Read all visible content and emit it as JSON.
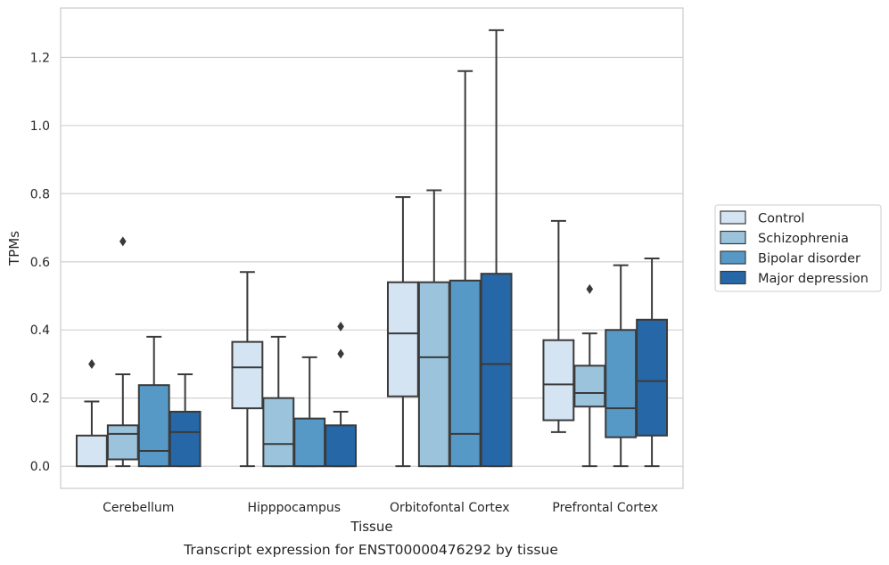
{
  "chart_data": {
    "type": "box",
    "title": "",
    "caption": "Transcript expression for ENST00000476292 by tissue",
    "xlabel": "Tissue",
    "ylabel": "TPMs",
    "ylim": [
      -0.065,
      1.345
    ],
    "yticks": [
      0.0,
      0.2,
      0.4,
      0.6,
      0.8,
      1.0,
      1.2
    ],
    "ytick_labels": [
      "0.0",
      "0.2",
      "0.4",
      "0.6",
      "0.8",
      "1.0",
      "1.2"
    ],
    "grid": "horizontal",
    "legend_position": "right",
    "categories": [
      "Cerebellum",
      "Hipppocampus",
      "Orbitofontal Cortex",
      "Prefrontal Cortex"
    ],
    "series": [
      {
        "name": "Control",
        "color": "#d4e4f3",
        "boxes": [
          {
            "whislo": 0.0,
            "q1": 0.0,
            "med": 0.0,
            "q3": 0.09,
            "whishi": 0.19,
            "fliers": [
              0.3
            ]
          },
          {
            "whislo": 0.0,
            "q1": 0.17,
            "med": 0.29,
            "q3": 0.365,
            "whishi": 0.57,
            "fliers": []
          },
          {
            "whislo": 0.0,
            "q1": 0.205,
            "med": 0.39,
            "q3": 0.54,
            "whishi": 0.79,
            "fliers": []
          },
          {
            "whislo": 0.1,
            "q1": 0.135,
            "med": 0.24,
            "q3": 0.37,
            "whishi": 0.72,
            "fliers": []
          }
        ]
      },
      {
        "name": "Schizophrenia",
        "color": "#9bc4dc",
        "boxes": [
          {
            "whislo": 0.0,
            "q1": 0.02,
            "med": 0.095,
            "q3": 0.12,
            "whishi": 0.27,
            "fliers": [
              0.66
            ]
          },
          {
            "whislo": 0.0,
            "q1": 0.0,
            "med": 0.065,
            "q3": 0.2,
            "whishi": 0.38,
            "fliers": []
          },
          {
            "whislo": 0.0,
            "q1": 0.0,
            "med": 0.32,
            "q3": 0.54,
            "whishi": 0.81,
            "fliers": []
          },
          {
            "whislo": 0.0,
            "q1": 0.175,
            "med": 0.215,
            "q3": 0.295,
            "whishi": 0.39,
            "fliers": [
              0.52
            ]
          }
        ]
      },
      {
        "name": "Bipolar disorder",
        "color": "#5799c6",
        "boxes": [
          {
            "whislo": 0.0,
            "q1": 0.0,
            "med": 0.045,
            "q3": 0.238,
            "whishi": 0.38,
            "fliers": []
          },
          {
            "whislo": 0.0,
            "q1": 0.0,
            "med": 0.0,
            "q3": 0.14,
            "whishi": 0.32,
            "fliers": []
          },
          {
            "whislo": 0.0,
            "q1": 0.0,
            "med": 0.095,
            "q3": 0.545,
            "whishi": 1.16,
            "fliers": []
          },
          {
            "whislo": 0.0,
            "q1": 0.085,
            "med": 0.17,
            "q3": 0.4,
            "whishi": 0.59,
            "fliers": []
          }
        ]
      },
      {
        "name": "Major depression",
        "color": "#2667a8",
        "boxes": [
          {
            "whislo": 0.0,
            "q1": 0.0,
            "med": 0.1,
            "q3": 0.16,
            "whishi": 0.27,
            "fliers": []
          },
          {
            "whislo": 0.0,
            "q1": 0.0,
            "med": 0.0,
            "q3": 0.12,
            "whishi": 0.16,
            "fliers": [
              0.33,
              0.41
            ]
          },
          {
            "whislo": 0.0,
            "q1": 0.0,
            "med": 0.3,
            "q3": 0.565,
            "whishi": 1.28,
            "fliers": []
          },
          {
            "whislo": 0.0,
            "q1": 0.09,
            "med": 0.25,
            "q3": 0.43,
            "whishi": 0.61,
            "fliers": []
          }
        ]
      }
    ]
  }
}
